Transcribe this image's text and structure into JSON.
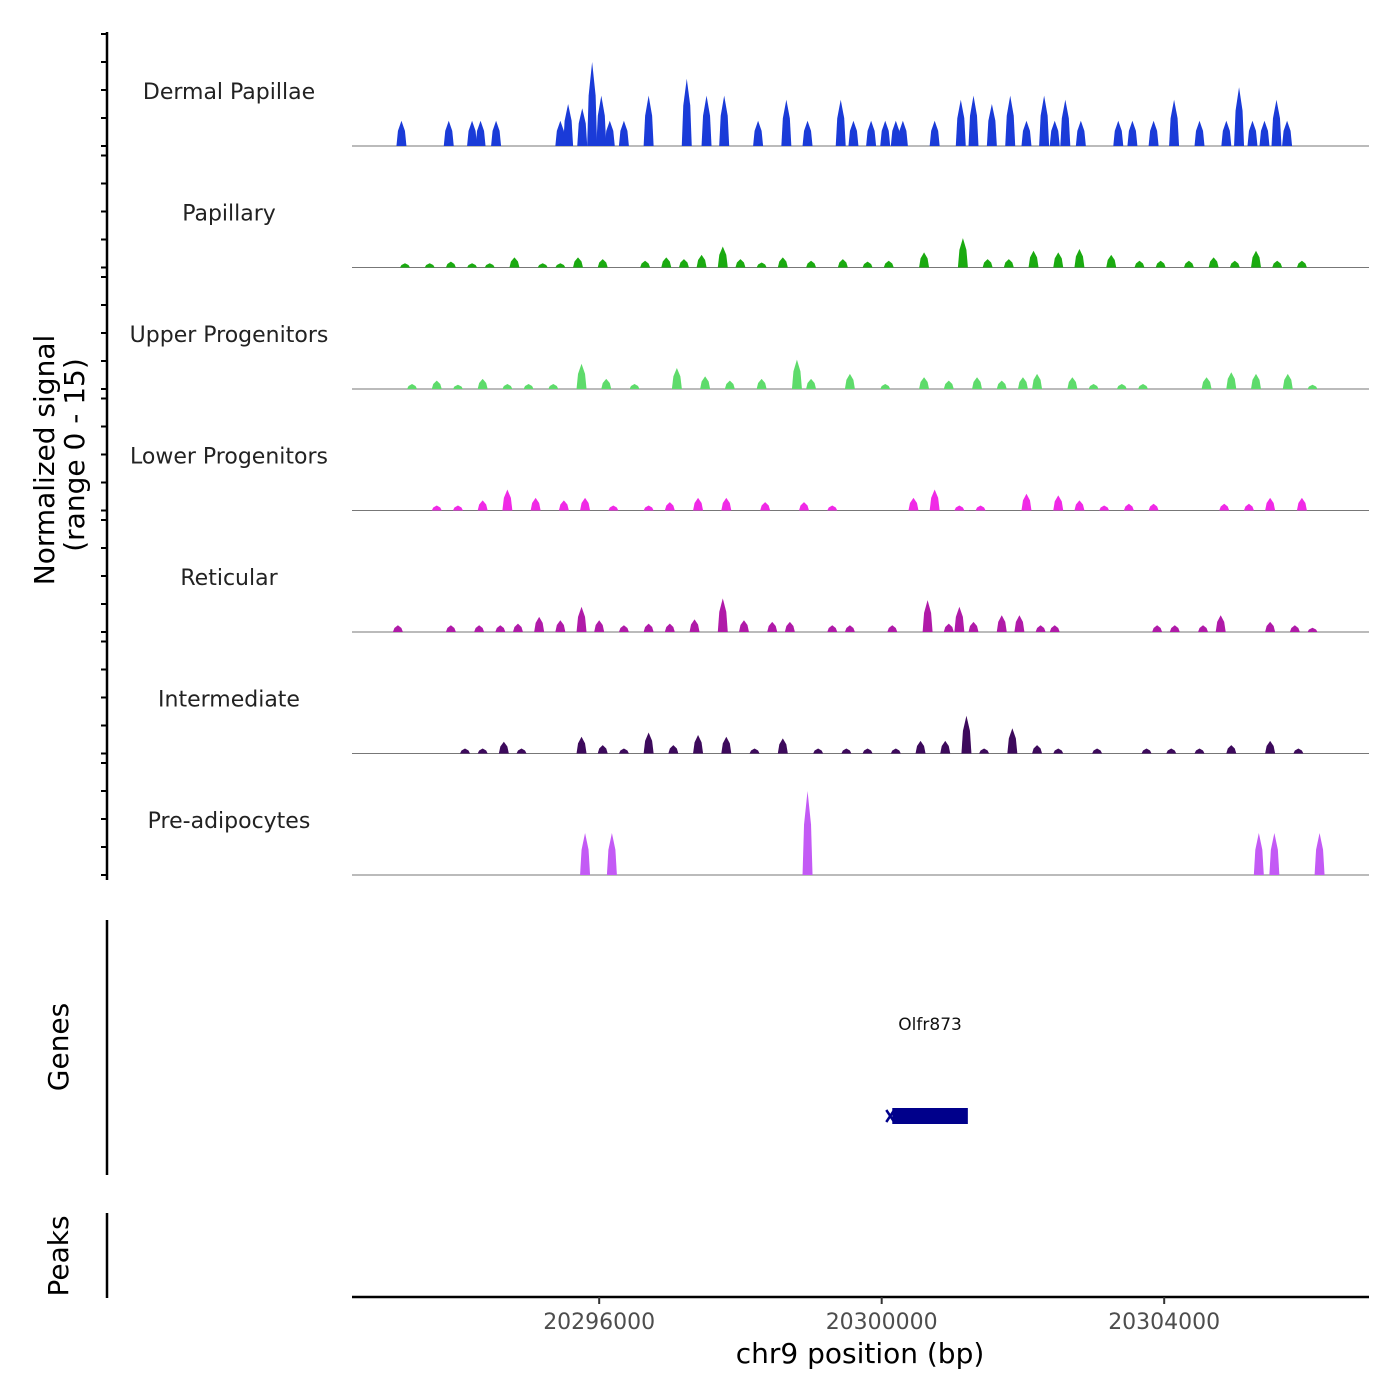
{
  "chart_data": {
    "type": "area",
    "title": "",
    "xlabel": "chr9 position (bp)",
    "ylabel_line1": "Normalized signal",
    "ylabel_line2": "(range 0 - 15)",
    "ylim": [
      0,
      15
    ],
    "xlim": [
      20292500,
      20306900
    ],
    "x_ticks": [
      20296000,
      20300000,
      20304000
    ],
    "x_tick_labels": [
      "20296000",
      "20300000",
      "20304000"
    ],
    "tracks": [
      {
        "name": "Dermal Papillae",
        "color": "#1a3bd8",
        "peaks": [
          [
            20293200,
            0.3
          ],
          [
            20293870,
            0.3
          ],
          [
            20294200,
            0.3
          ],
          [
            20294320,
            0.3
          ],
          [
            20294540,
            0.3
          ],
          [
            20295450,
            0.3
          ],
          [
            20295560,
            0.5
          ],
          [
            20295760,
            0.45
          ],
          [
            20295900,
            1.0
          ],
          [
            20296030,
            0.6
          ],
          [
            20296150,
            0.3
          ],
          [
            20296350,
            0.3
          ],
          [
            20296700,
            0.6
          ],
          [
            20297240,
            0.8
          ],
          [
            20297520,
            0.6
          ],
          [
            20297770,
            0.6
          ],
          [
            20298250,
            0.3
          ],
          [
            20298650,
            0.55
          ],
          [
            20298950,
            0.3
          ],
          [
            20299420,
            0.55
          ],
          [
            20299600,
            0.3
          ],
          [
            20299850,
            0.3
          ],
          [
            20300050,
            0.3
          ],
          [
            20300200,
            0.3
          ],
          [
            20300300,
            0.3
          ],
          [
            20300750,
            0.3
          ],
          [
            20301120,
            0.55
          ],
          [
            20301300,
            0.6
          ],
          [
            20301560,
            0.5
          ],
          [
            20301820,
            0.6
          ],
          [
            20302050,
            0.3
          ],
          [
            20302300,
            0.6
          ],
          [
            20302450,
            0.3
          ],
          [
            20302600,
            0.55
          ],
          [
            20302820,
            0.3
          ],
          [
            20303350,
            0.3
          ],
          [
            20303550,
            0.3
          ],
          [
            20303850,
            0.3
          ],
          [
            20304140,
            0.55
          ],
          [
            20304500,
            0.3
          ],
          [
            20304880,
            0.3
          ],
          [
            20305060,
            0.7
          ],
          [
            20305250,
            0.3
          ],
          [
            20305420,
            0.3
          ],
          [
            20305590,
            0.55
          ],
          [
            20305740,
            0.3
          ]
        ]
      },
      {
        "name": "Papillary",
        "color": "#1aaa10",
        "peaks": [
          [
            20293250,
            0.05
          ],
          [
            20293600,
            0.05
          ],
          [
            20293900,
            0.07
          ],
          [
            20294200,
            0.05
          ],
          [
            20294450,
            0.05
          ],
          [
            20294800,
            0.12
          ],
          [
            20295200,
            0.05
          ],
          [
            20295450,
            0.05
          ],
          [
            20295700,
            0.12
          ],
          [
            20296050,
            0.1
          ],
          [
            20296650,
            0.08
          ],
          [
            20296950,
            0.12
          ],
          [
            20297200,
            0.1
          ],
          [
            20297450,
            0.15
          ],
          [
            20297750,
            0.25
          ],
          [
            20298000,
            0.1
          ],
          [
            20298300,
            0.06
          ],
          [
            20298600,
            0.12
          ],
          [
            20299000,
            0.08
          ],
          [
            20299450,
            0.1
          ],
          [
            20299800,
            0.07
          ],
          [
            20300100,
            0.08
          ],
          [
            20300600,
            0.18
          ],
          [
            20301150,
            0.35
          ],
          [
            20301500,
            0.1
          ],
          [
            20301800,
            0.1
          ],
          [
            20302150,
            0.2
          ],
          [
            20302500,
            0.18
          ],
          [
            20302800,
            0.22
          ],
          [
            20303250,
            0.15
          ],
          [
            20303650,
            0.08
          ],
          [
            20303950,
            0.08
          ],
          [
            20304350,
            0.08
          ],
          [
            20304700,
            0.12
          ],
          [
            20305000,
            0.08
          ],
          [
            20305300,
            0.2
          ],
          [
            20305600,
            0.08
          ],
          [
            20305950,
            0.08
          ]
        ]
      },
      {
        "name": "Upper Progenitors",
        "color": "#5edb6b",
        "peaks": [
          [
            20293350,
            0.06
          ],
          [
            20293700,
            0.1
          ],
          [
            20294000,
            0.05
          ],
          [
            20294350,
            0.12
          ],
          [
            20294700,
            0.06
          ],
          [
            20295000,
            0.06
          ],
          [
            20295350,
            0.06
          ],
          [
            20295750,
            0.3
          ],
          [
            20296100,
            0.12
          ],
          [
            20296500,
            0.06
          ],
          [
            20297100,
            0.25
          ],
          [
            20297500,
            0.15
          ],
          [
            20297850,
            0.1
          ],
          [
            20298300,
            0.12
          ],
          [
            20298800,
            0.35
          ],
          [
            20299000,
            0.12
          ],
          [
            20299550,
            0.18
          ],
          [
            20300050,
            0.06
          ],
          [
            20300600,
            0.14
          ],
          [
            20300950,
            0.1
          ],
          [
            20301350,
            0.14
          ],
          [
            20301700,
            0.1
          ],
          [
            20302000,
            0.14
          ],
          [
            20302200,
            0.18
          ],
          [
            20302700,
            0.14
          ],
          [
            20303000,
            0.06
          ],
          [
            20303400,
            0.06
          ],
          [
            20303700,
            0.06
          ],
          [
            20304600,
            0.14
          ],
          [
            20304950,
            0.2
          ],
          [
            20305300,
            0.18
          ],
          [
            20305750,
            0.18
          ],
          [
            20306100,
            0.05
          ]
        ]
      },
      {
        "name": "Lower Progenitors",
        "color": "#f029e6",
        "peaks": [
          [
            20293700,
            0.06
          ],
          [
            20294000,
            0.06
          ],
          [
            20294350,
            0.12
          ],
          [
            20294700,
            0.25
          ],
          [
            20295100,
            0.15
          ],
          [
            20295500,
            0.12
          ],
          [
            20295800,
            0.15
          ],
          [
            20296200,
            0.06
          ],
          [
            20296700,
            0.06
          ],
          [
            20297000,
            0.1
          ],
          [
            20297400,
            0.15
          ],
          [
            20297800,
            0.15
          ],
          [
            20298350,
            0.1
          ],
          [
            20298900,
            0.1
          ],
          [
            20299300,
            0.06
          ],
          [
            20300450,
            0.15
          ],
          [
            20300750,
            0.25
          ],
          [
            20301100,
            0.06
          ],
          [
            20301400,
            0.06
          ],
          [
            20302050,
            0.2
          ],
          [
            20302500,
            0.18
          ],
          [
            20302800,
            0.12
          ],
          [
            20303150,
            0.06
          ],
          [
            20303500,
            0.08
          ],
          [
            20303850,
            0.08
          ],
          [
            20304850,
            0.08
          ],
          [
            20305200,
            0.08
          ],
          [
            20305500,
            0.15
          ],
          [
            20305950,
            0.15
          ]
        ]
      },
      {
        "name": "Reticular",
        "color": "#b01aa8",
        "peaks": [
          [
            20293150,
            0.08
          ],
          [
            20293900,
            0.08
          ],
          [
            20294300,
            0.08
          ],
          [
            20294600,
            0.08
          ],
          [
            20294850,
            0.1
          ],
          [
            20295150,
            0.18
          ],
          [
            20295450,
            0.14
          ],
          [
            20295750,
            0.3
          ],
          [
            20296000,
            0.14
          ],
          [
            20296350,
            0.08
          ],
          [
            20296700,
            0.1
          ],
          [
            20297000,
            0.1
          ],
          [
            20297350,
            0.15
          ],
          [
            20297750,
            0.4
          ],
          [
            20298050,
            0.14
          ],
          [
            20298450,
            0.12
          ],
          [
            20298700,
            0.12
          ],
          [
            20299300,
            0.08
          ],
          [
            20299550,
            0.08
          ],
          [
            20300150,
            0.08
          ],
          [
            20300650,
            0.38
          ],
          [
            20300950,
            0.1
          ],
          [
            20301100,
            0.3
          ],
          [
            20301300,
            0.12
          ],
          [
            20301700,
            0.2
          ],
          [
            20301950,
            0.2
          ],
          [
            20302250,
            0.08
          ],
          [
            20302450,
            0.08
          ],
          [
            20303900,
            0.08
          ],
          [
            20304150,
            0.08
          ],
          [
            20304550,
            0.08
          ],
          [
            20304800,
            0.2
          ],
          [
            20305500,
            0.12
          ],
          [
            20305850,
            0.08
          ],
          [
            20306100,
            0.05
          ]
        ]
      },
      {
        "name": "Intermediate",
        "color": "#3d0a5c",
        "peaks": [
          [
            20294100,
            0.06
          ],
          [
            20294350,
            0.06
          ],
          [
            20294650,
            0.14
          ],
          [
            20294900,
            0.06
          ],
          [
            20295750,
            0.2
          ],
          [
            20296050,
            0.1
          ],
          [
            20296350,
            0.06
          ],
          [
            20296700,
            0.25
          ],
          [
            20297050,
            0.1
          ],
          [
            20297400,
            0.22
          ],
          [
            20297800,
            0.2
          ],
          [
            20298200,
            0.06
          ],
          [
            20298600,
            0.18
          ],
          [
            20299100,
            0.06
          ],
          [
            20299500,
            0.06
          ],
          [
            20299800,
            0.06
          ],
          [
            20300200,
            0.06
          ],
          [
            20300550,
            0.15
          ],
          [
            20300900,
            0.15
          ],
          [
            20301200,
            0.45
          ],
          [
            20301450,
            0.06
          ],
          [
            20301850,
            0.3
          ],
          [
            20302200,
            0.1
          ],
          [
            20302500,
            0.06
          ],
          [
            20303050,
            0.06
          ],
          [
            20303750,
            0.06
          ],
          [
            20304100,
            0.06
          ],
          [
            20304500,
            0.06
          ],
          [
            20304950,
            0.1
          ],
          [
            20305500,
            0.15
          ],
          [
            20305900,
            0.06
          ]
        ]
      },
      {
        "name": "Pre-adipocytes",
        "color": "#c35af5",
        "peaks": [
          [
            20295800,
            0.5
          ],
          [
            20296180,
            0.5
          ],
          [
            20298950,
            1.0
          ],
          [
            20305340,
            0.5
          ],
          [
            20305560,
            0.5
          ],
          [
            20306200,
            0.5
          ]
        ]
      }
    ],
    "genes": {
      "label": "Genes",
      "items": [
        {
          "name": "Olfr873",
          "start": 20300150,
          "end": 20301220,
          "color": "#00008b"
        }
      ]
    },
    "peaks_track": {
      "label": "Peaks"
    }
  }
}
